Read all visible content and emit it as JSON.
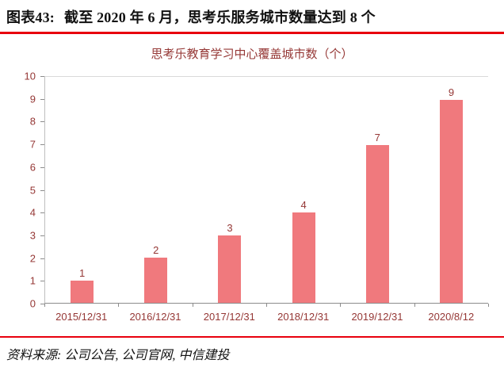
{
  "header": {
    "label": "图表43:",
    "title": "截至 2020 年 6 月，思考乐服务城市数量达到 8 个"
  },
  "chart_data": {
    "type": "bar",
    "title": "思考乐教育学习中心覆盖城市数（个）",
    "categories": [
      "2015/12/31",
      "2016/12/31",
      "2017/12/31",
      "2018/12/31",
      "2019/12/31",
      "2020/8/12"
    ],
    "values": [
      1,
      2,
      3,
      4,
      7,
      9
    ],
    "xlabel": "",
    "ylabel": "",
    "ylim": [
      0,
      10
    ],
    "ytick_step": 1,
    "grid": false,
    "legend": "none",
    "bar_color": "#F0797D",
    "axis_text_color": "#953735"
  },
  "footer": {
    "source": "资料来源: 公司公告, 公司官网, 中信建投"
  },
  "colors": {
    "accent_line": "#E8000D",
    "bar": "#F0797D",
    "dark_red_text": "#953735"
  }
}
